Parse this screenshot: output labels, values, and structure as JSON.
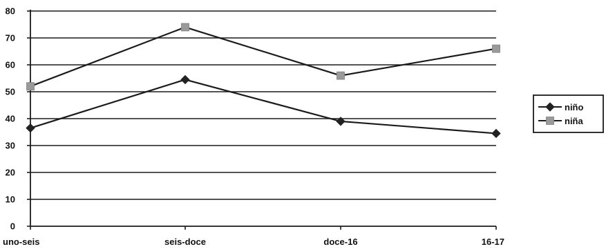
{
  "chart_data": {
    "type": "line",
    "categories": [
      "uno-seis",
      "seis-doce",
      "doce-16",
      "16-17"
    ],
    "ylim": [
      0,
      80
    ],
    "yticks": [
      0,
      10,
      20,
      30,
      40,
      50,
      60,
      70,
      80
    ],
    "grid": true,
    "legend_position": "right",
    "title": "",
    "xlabel": "",
    "ylabel": "",
    "series": [
      {
        "name": "niño",
        "values": [
          36.5,
          54.5,
          39,
          34.5
        ],
        "marker": "diamond",
        "color": "#222222"
      },
      {
        "name": "niña",
        "values": [
          52,
          74,
          56,
          66
        ],
        "marker": "square",
        "color": "#9a9a9a"
      }
    ]
  }
}
